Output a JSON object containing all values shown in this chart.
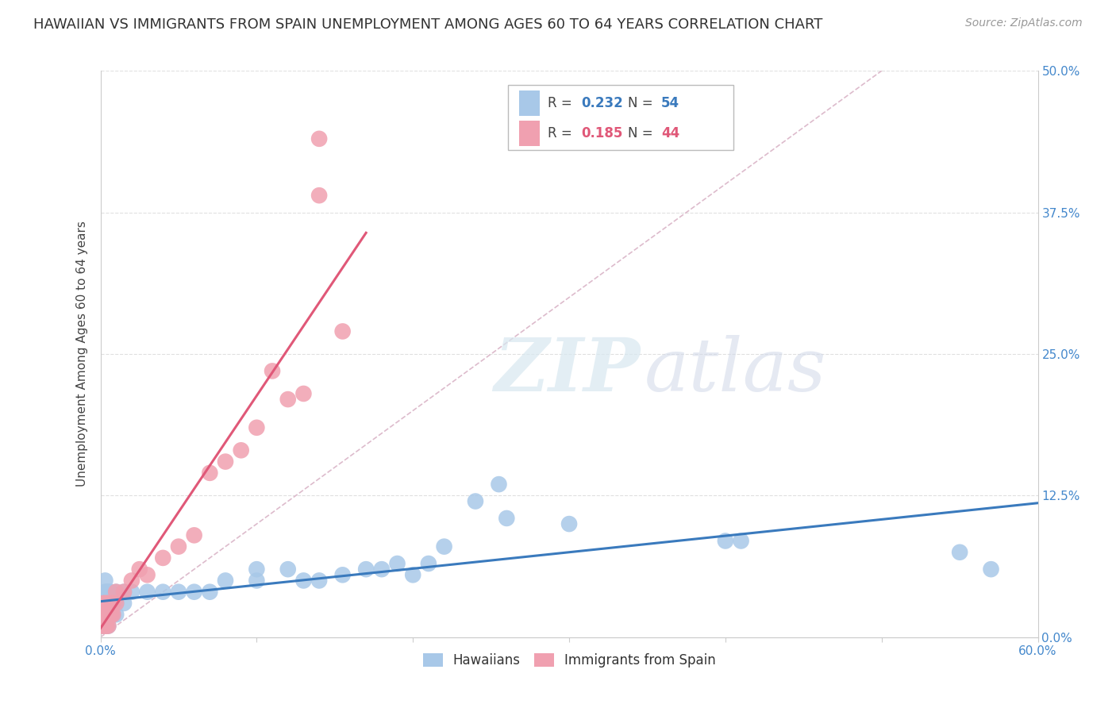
{
  "title": "HAWAIIAN VS IMMIGRANTS FROM SPAIN UNEMPLOYMENT AMONG AGES 60 TO 64 YEARS CORRELATION CHART",
  "source": "Source: ZipAtlas.com",
  "ylabel": "Unemployment Among Ages 60 to 64 years",
  "xlim": [
    0.0,
    0.6
  ],
  "ylim": [
    0.0,
    0.5
  ],
  "ytick_vals": [
    0.0,
    0.125,
    0.25,
    0.375,
    0.5
  ],
  "ytick_labels_right": [
    "0.0%",
    "12.5%",
    "25.0%",
    "37.5%",
    "50.0%"
  ],
  "xtick_vals": [
    0.0,
    0.1,
    0.2,
    0.3,
    0.4,
    0.5,
    0.6
  ],
  "xtick_labels": [
    "0.0%",
    "",
    "",
    "",
    "",
    "",
    "60.0%"
  ],
  "hawaiian_color": "#a8c8e8",
  "spain_color": "#f0a0b0",
  "hawaiian_line_color": "#3a7abd",
  "spain_line_color": "#e05878",
  "ref_line_color": "#cccccc",
  "watermark_line1": "ZIP",
  "watermark_line2": "atlas",
  "grid_color": "#e0e0e0",
  "background_color": "#ffffff",
  "title_fontsize": 13,
  "axis_label_fontsize": 11,
  "tick_fontsize": 11,
  "source_fontsize": 10,
  "hawaiian_x": [
    0.002,
    0.002,
    0.002,
    0.003,
    0.003,
    0.003,
    0.003,
    0.003,
    0.004,
    0.004,
    0.004,
    0.004,
    0.005,
    0.005,
    0.005,
    0.005,
    0.006,
    0.006,
    0.006,
    0.007,
    0.007,
    0.008,
    0.008,
    0.009,
    0.01,
    0.01,
    0.01,
    0.015,
    0.015,
    0.02,
    0.03,
    0.04,
    0.05,
    0.06,
    0.07,
    0.08,
    0.1,
    0.1,
    0.12,
    0.13,
    0.14,
    0.155,
    0.17,
    0.18,
    0.19,
    0.2,
    0.21,
    0.22,
    0.24,
    0.255,
    0.26,
    0.3,
    0.4,
    0.41,
    0.55,
    0.57
  ],
  "hawaiian_y": [
    0.01,
    0.02,
    0.03,
    0.01,
    0.02,
    0.03,
    0.04,
    0.05,
    0.01,
    0.02,
    0.03,
    0.04,
    0.01,
    0.02,
    0.03,
    0.04,
    0.02,
    0.03,
    0.04,
    0.02,
    0.03,
    0.02,
    0.03,
    0.03,
    0.02,
    0.03,
    0.04,
    0.03,
    0.04,
    0.04,
    0.04,
    0.04,
    0.04,
    0.04,
    0.04,
    0.05,
    0.05,
    0.06,
    0.06,
    0.05,
    0.05,
    0.055,
    0.06,
    0.06,
    0.065,
    0.055,
    0.065,
    0.08,
    0.12,
    0.135,
    0.105,
    0.1,
    0.085,
    0.085,
    0.075,
    0.06
  ],
  "spain_x": [
    0.001,
    0.001,
    0.002,
    0.002,
    0.002,
    0.003,
    0.003,
    0.003,
    0.004,
    0.004,
    0.004,
    0.005,
    0.005,
    0.005,
    0.006,
    0.007,
    0.007,
    0.008,
    0.008,
    0.01,
    0.01,
    0.015,
    0.02,
    0.025,
    0.03,
    0.04,
    0.05,
    0.06,
    0.07,
    0.08,
    0.09,
    0.1,
    0.11,
    0.12,
    0.13,
    0.14,
    0.14,
    0.155
  ],
  "spain_y": [
    0.01,
    0.02,
    0.01,
    0.02,
    0.03,
    0.01,
    0.02,
    0.03,
    0.01,
    0.02,
    0.03,
    0.01,
    0.02,
    0.03,
    0.03,
    0.02,
    0.03,
    0.02,
    0.03,
    0.03,
    0.04,
    0.04,
    0.05,
    0.06,
    0.055,
    0.07,
    0.08,
    0.09,
    0.145,
    0.155,
    0.165,
    0.185,
    0.235,
    0.21,
    0.215,
    0.39,
    0.44,
    0.27
  ]
}
